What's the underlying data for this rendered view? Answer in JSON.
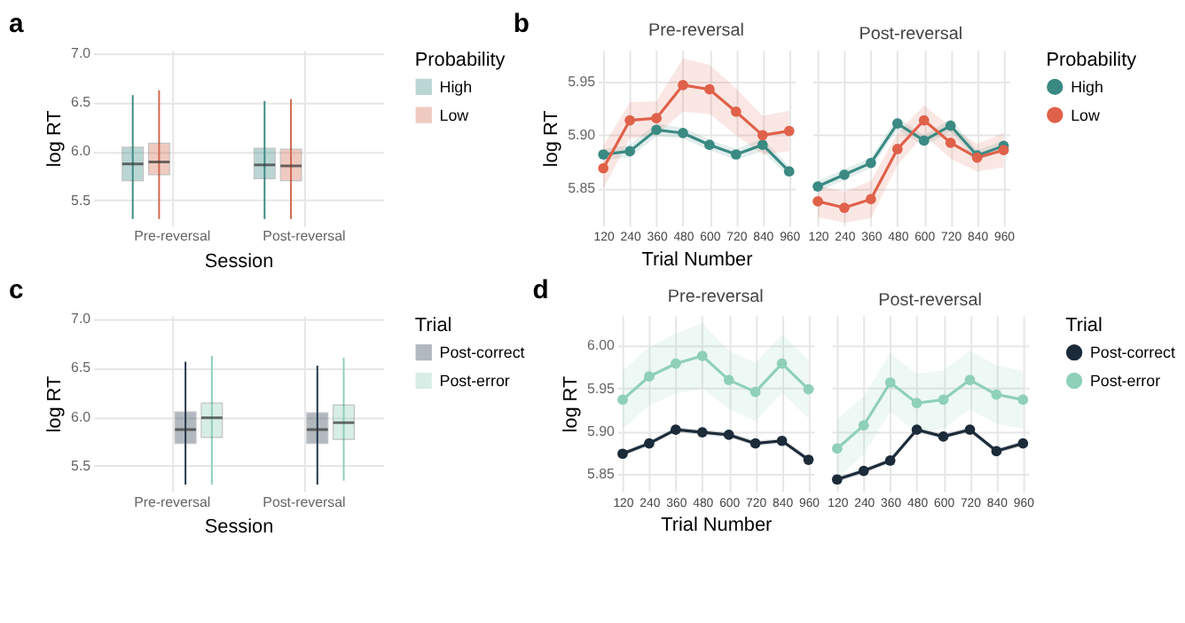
{
  "chart_data": [
    {
      "type": "box",
      "annotations": [
        "a"
      ],
      "xlabel": "Session",
      "ylabel": "log RT",
      "legend_title": "Probability",
      "legend": "right",
      "grid": true,
      "categories": [
        "Pre-reversal",
        "Post-reversal"
      ],
      "ylim": [
        5.24,
        7.03
      ],
      "yticks": [
        5.5,
        {
          "value": 6,
          "label": "6.0"
        },
        6.5,
        {
          "value": 7,
          "label": "7.0"
        }
      ],
      "series": [
        {
          "name": "High",
          "color": "#3d8b85",
          "boxes": [
            {
              "low": 5.31,
              "q1": 5.7,
              "median": 5.87,
              "q3": 6.04,
              "high": 6.57
            },
            {
              "low": 5.31,
              "q1": 5.72,
              "median": 5.86,
              "q3": 6.03,
              "high": 6.51
            }
          ]
        },
        {
          "name": "Low",
          "color": "#d2694f",
          "boxes": [
            {
              "low": 5.31,
              "q1": 5.76,
              "median": 5.89,
              "q3": 6.08,
              "high": 6.62
            },
            {
              "low": 5.31,
              "q1": 5.7,
              "median": 5.85,
              "q3": 6.02,
              "high": 6.53
            }
          ]
        }
      ]
    },
    {
      "type": "line",
      "annotations": [
        "b"
      ],
      "title": "Pre-reversal",
      "legend_title": "Probability",
      "legend": "right",
      "xlabel": "Trial Number",
      "ylabel": "log RT",
      "grid": true,
      "marker": "circle",
      "x": [
        120,
        240,
        360,
        480,
        600,
        720,
        840,
        960
      ],
      "xlim": [
        95,
        985
      ],
      "xticks": [
        120,
        240,
        360,
        480,
        600,
        720,
        840,
        960
      ],
      "ylim": [
        5.815,
        5.98
      ],
      "yticks": [
        5.85,
        {
          "value": 5.9,
          "label": "5.90"
        },
        5.95
      ],
      "series": [
        {
          "name": "High",
          "color": "#3a8a83",
          "values": [
            5.882,
            5.885,
            5.905,
            5.902,
            5.891,
            5.882,
            5.891,
            5.866
          ],
          "lower": [
            5.877,
            5.879,
            5.899,
            5.897,
            5.886,
            5.877,
            5.885,
            5.861
          ],
          "upper": [
            5.887,
            5.891,
            5.911,
            5.907,
            5.896,
            5.887,
            5.897,
            5.871
          ]
        },
        {
          "name": "Low",
          "color": "#e0614a",
          "values": [
            5.869,
            5.914,
            5.916,
            5.947,
            5.943,
            5.922,
            5.9,
            5.904
          ],
          "lower": [
            5.85,
            5.897,
            5.9,
            5.922,
            5.92,
            5.9,
            5.882,
            5.885
          ],
          "upper": [
            5.89,
            5.931,
            5.932,
            5.972,
            5.966,
            5.944,
            5.918,
            5.923
          ]
        }
      ]
    },
    {
      "type": "line",
      "title": "Post-reversal",
      "legend": "right",
      "tick_labels": "x",
      "grid": true,
      "marker": "circle",
      "x": [
        120,
        240,
        360,
        480,
        600,
        720,
        840,
        960
      ],
      "xlim": [
        95,
        985
      ],
      "xticks": [
        120,
        240,
        360,
        480,
        600,
        720,
        840,
        960
      ],
      "ylim": [
        5.815,
        5.98
      ],
      "yticks": [
        5.85,
        {
          "value": 5.9,
          "label": "5.90"
        },
        5.95
      ],
      "series": [
        {
          "name": "High",
          "color": "#3a8a83",
          "values": [
            5.852,
            5.863,
            5.874,
            5.911,
            5.895,
            5.909,
            5.881,
            5.89
          ],
          "lower": [
            5.847,
            5.858,
            5.869,
            5.905,
            5.89,
            5.903,
            5.876,
            5.885
          ],
          "upper": [
            5.857,
            5.868,
            5.879,
            5.917,
            5.9,
            5.915,
            5.886,
            5.895
          ]
        },
        {
          "name": "Low",
          "color": "#e0614a",
          "values": [
            5.838,
            5.832,
            5.84,
            5.887,
            5.914,
            5.893,
            5.879,
            5.886
          ],
          "lower": [
            5.823,
            5.818,
            5.822,
            5.872,
            5.9,
            5.878,
            5.866,
            5.87
          ],
          "upper": [
            5.853,
            5.847,
            5.857,
            5.902,
            5.928,
            5.908,
            5.892,
            5.902
          ]
        }
      ]
    },
    {
      "type": "box",
      "annotations": [
        "c"
      ],
      "xlabel": "Session",
      "ylabel": "log RT",
      "legend_title": "Trial",
      "legend": "right",
      "grid": true,
      "categories": [
        "Pre-reversal",
        "Post-reversal"
      ],
      "ylim": [
        5.24,
        7.03
      ],
      "yticks": [
        5.5,
        {
          "value": 6,
          "label": "6.0"
        },
        6.5,
        {
          "value": 7,
          "label": "7.0"
        }
      ],
      "series": [
        {
          "name": "Post-correct",
          "color": "#24364a",
          "boxes": [
            {
              "low": 5.31,
              "q1": 5.73,
              "median": 5.87,
              "q3": 6.05,
              "high": 6.56
            },
            {
              "low": 5.31,
              "q1": 5.73,
              "median": 5.87,
              "q3": 6.04,
              "high": 6.52
            }
          ]
        },
        {
          "name": "Post-error",
          "color": "#8fcfb8",
          "boxes": [
            {
              "low": 5.31,
              "q1": 5.79,
              "median": 5.99,
              "q3": 6.14,
              "high": 6.62
            },
            {
              "low": 5.35,
              "q1": 5.77,
              "median": 5.94,
              "q3": 6.12,
              "high": 6.6
            }
          ]
        }
      ]
    },
    {
      "type": "line",
      "annotations": [
        "d"
      ],
      "title": "Pre-reversal",
      "legend_title": "Trial",
      "legend": "right",
      "xlabel": "Trial Number",
      "ylabel": "log RT",
      "grid": true,
      "marker": "circle",
      "x": [
        120,
        240,
        360,
        480,
        600,
        720,
        840,
        960
      ],
      "xlim": [
        95,
        985
      ],
      "xticks": [
        120,
        240,
        360,
        480,
        600,
        720,
        840,
        960
      ],
      "ylim": [
        5.83,
        6.035
      ],
      "yticks": [
        5.85,
        {
          "value": 5.9,
          "label": "5.90"
        },
        5.95,
        {
          "value": 6,
          "label": "6.00"
        }
      ],
      "series": [
        {
          "name": "Post-correct",
          "color": "#1c2b3a",
          "values": [
            5.874,
            5.886,
            5.902,
            5.899,
            5.896,
            5.886,
            5.889,
            5.867
          ],
          "lower": [
            5.871,
            5.883,
            5.899,
            5.896,
            5.893,
            5.883,
            5.886,
            5.864
          ],
          "upper": [
            5.877,
            5.889,
            5.905,
            5.902,
            5.899,
            5.889,
            5.892,
            5.87
          ]
        },
        {
          "name": "Post-error",
          "color": "#8fd0b8",
          "values": [
            5.937,
            5.964,
            5.979,
            5.988,
            5.96,
            5.946,
            5.979,
            5.949
          ],
          "lower": [
            5.903,
            5.93,
            5.944,
            5.95,
            5.926,
            5.912,
            5.945,
            5.915
          ],
          "upper": [
            5.971,
            5.998,
            6.014,
            6.026,
            5.994,
            5.98,
            6.013,
            5.983
          ]
        }
      ]
    },
    {
      "type": "line",
      "title": "Post-reversal",
      "legend": "right",
      "tick_labels": "x",
      "grid": true,
      "marker": "circle",
      "x": [
        120,
        240,
        360,
        480,
        600,
        720,
        840,
        960
      ],
      "xlim": [
        95,
        985
      ],
      "xticks": [
        120,
        240,
        360,
        480,
        600,
        720,
        840,
        960
      ],
      "ylim": [
        5.83,
        6.035
      ],
      "yticks": [
        5.85,
        {
          "value": 5.9,
          "label": "5.90"
        },
        5.95,
        {
          "value": 6,
          "label": "6.00"
        }
      ],
      "series": [
        {
          "name": "Post-correct",
          "color": "#1c2b3a",
          "values": [
            5.844,
            5.854,
            5.866,
            5.902,
            5.894,
            5.902,
            5.877,
            5.886
          ],
          "lower": [
            5.841,
            5.851,
            5.863,
            5.899,
            5.891,
            5.899,
            5.874,
            5.883
          ],
          "upper": [
            5.847,
            5.857,
            5.869,
            5.905,
            5.897,
            5.905,
            5.88,
            5.889
          ]
        },
        {
          "name": "Post-error",
          "color": "#8fd0b8",
          "values": [
            5.88,
            5.907,
            5.957,
            5.933,
            5.937,
            5.96,
            5.943,
            5.937
          ],
          "lower": [
            5.846,
            5.873,
            5.923,
            5.899,
            5.903,
            5.926,
            5.909,
            5.903
          ],
          "upper": [
            5.914,
            5.941,
            5.991,
            5.967,
            5.971,
            5.994,
            5.977,
            5.971
          ]
        }
      ]
    }
  ]
}
